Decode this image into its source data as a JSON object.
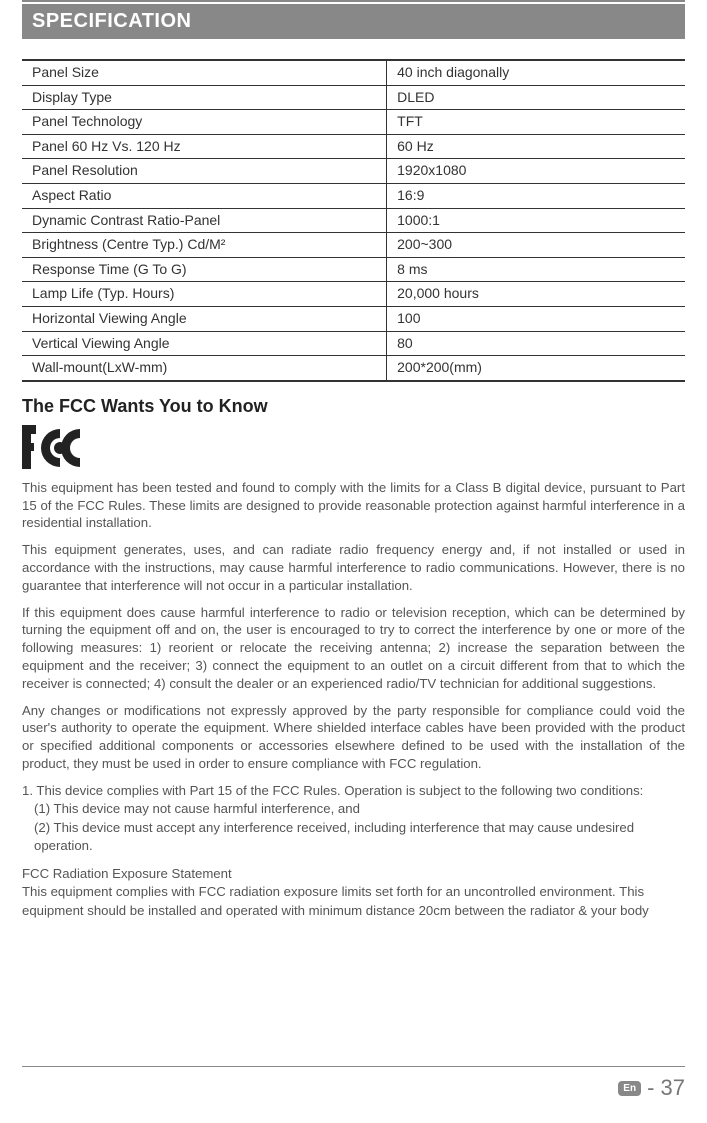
{
  "header": {
    "title": "SPECIFICATION"
  },
  "spec_table": {
    "rows": [
      {
        "label": "Panel Size",
        "value": "40 inch diagonally"
      },
      {
        "label": "Display Type",
        "value": "DLED"
      },
      {
        "label": "Panel Technology",
        "value": "TFT"
      },
      {
        "label": "Panel 60 Hz Vs. 120 Hz",
        "value": "60 Hz"
      },
      {
        "label": "Panel Resolution",
        "value": "1920x1080"
      },
      {
        "label": "Aspect Ratio",
        "value": "16:9"
      },
      {
        "label": "Dynamic Contrast Ratio-Panel",
        "value": "1000:1"
      },
      {
        "label": "Brightness (Centre Typ.) Cd/M²",
        "value": "200~300"
      },
      {
        "label": "Response Time (G To G)",
        "value": "8 ms"
      },
      {
        "label": "Lamp Life (Typ. Hours)",
        "value": "20,000 hours"
      },
      {
        "label": "Horizontal Viewing Angle",
        "value": "100"
      },
      {
        "label": "Vertical Viewing Angle",
        "value": "80"
      },
      {
        "label": "Wall-mount(LxW-mm)",
        "value": "200*200(mm)"
      }
    ]
  },
  "fcc": {
    "heading": "The FCC Wants You to Know",
    "para1": "This equipment has been tested and found to comply with the limits for a Class B digital device, pursuant to Part 15 of the FCC Rules. These limits are designed to provide reasonable protection against harmful interference in a residential installation.",
    "para2": "This equipment generates, uses, and can radiate radio frequency energy and, if not installed or used in accordance with the instructions, may cause harmful interference to radio communications. However, there is no guarantee that interference will not occur in a particular installation.",
    "para3": "If this equipment does cause harmful interference to radio or television reception, which can be determined by turning the equipment off and on, the user is encouraged to try to correct the interference by one or more of the following measures: 1) reorient or relocate the receiving antenna; 2) increase the separation between the equipment and the receiver; 3) connect the equipment to an outlet on a circuit different from that to which the receiver is connected; 4) consult the dealer or an experienced radio/TV technician for additional suggestions.",
    "para4": "Any changes or modifications not expressly approved by the party responsible for compliance could void the user's authority to operate the equipment. Where shielded interface cables have been provided with the product or specified additional components or accessories elsewhere defined to be used with the installation of the product, they must be used in order to ensure compliance with FCC regulation.",
    "list_intro": "1. This device complies with Part 15 of the FCC Rules. Operation is subject to the following two conditions:",
    "list_item1": "(1) This device may not cause harmful interference, and",
    "list_item2": "(2) This device must accept any interference received, including interference that may cause undesired operation.",
    "rad_heading": "FCC Radiation Exposure Statement",
    "rad_body": "This equipment complies with FCC radiation exposure limits set forth for an uncontrolled environment. This equipment should be installed and operated with minimum distance 20cm  between the radiator & your body"
  },
  "footer": {
    "lang": "En",
    "page": "- 37"
  },
  "colors": {
    "header_bg": "#888888",
    "header_fg": "#ffffff",
    "text": "#555555",
    "border": "#333333"
  }
}
